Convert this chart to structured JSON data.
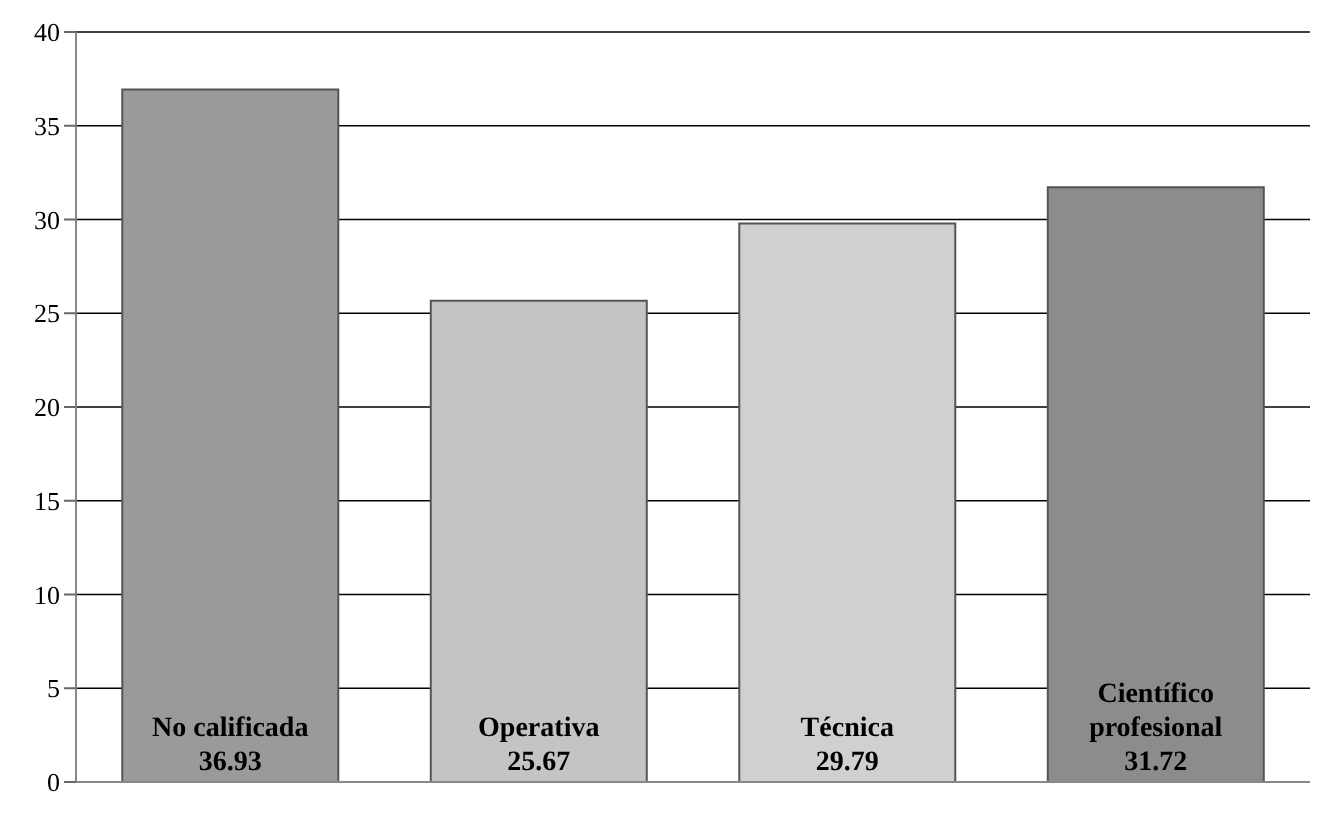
{
  "chart_data": {
    "type": "bar",
    "categories": [
      "No calificada",
      "Operativa",
      "Técnica",
      "Científico profesional"
    ],
    "values": [
      36.93,
      25.67,
      29.79,
      31.72
    ],
    "colors": [
      "#9a9a9a",
      "#c4c4c4",
      "#d0d0d0",
      "#8c8c8c"
    ],
    "ylim": [
      0,
      40
    ],
    "yticks": [
      0,
      5,
      10,
      15,
      20,
      25,
      30,
      35,
      40
    ],
    "grid": "y",
    "data_labels": true
  }
}
